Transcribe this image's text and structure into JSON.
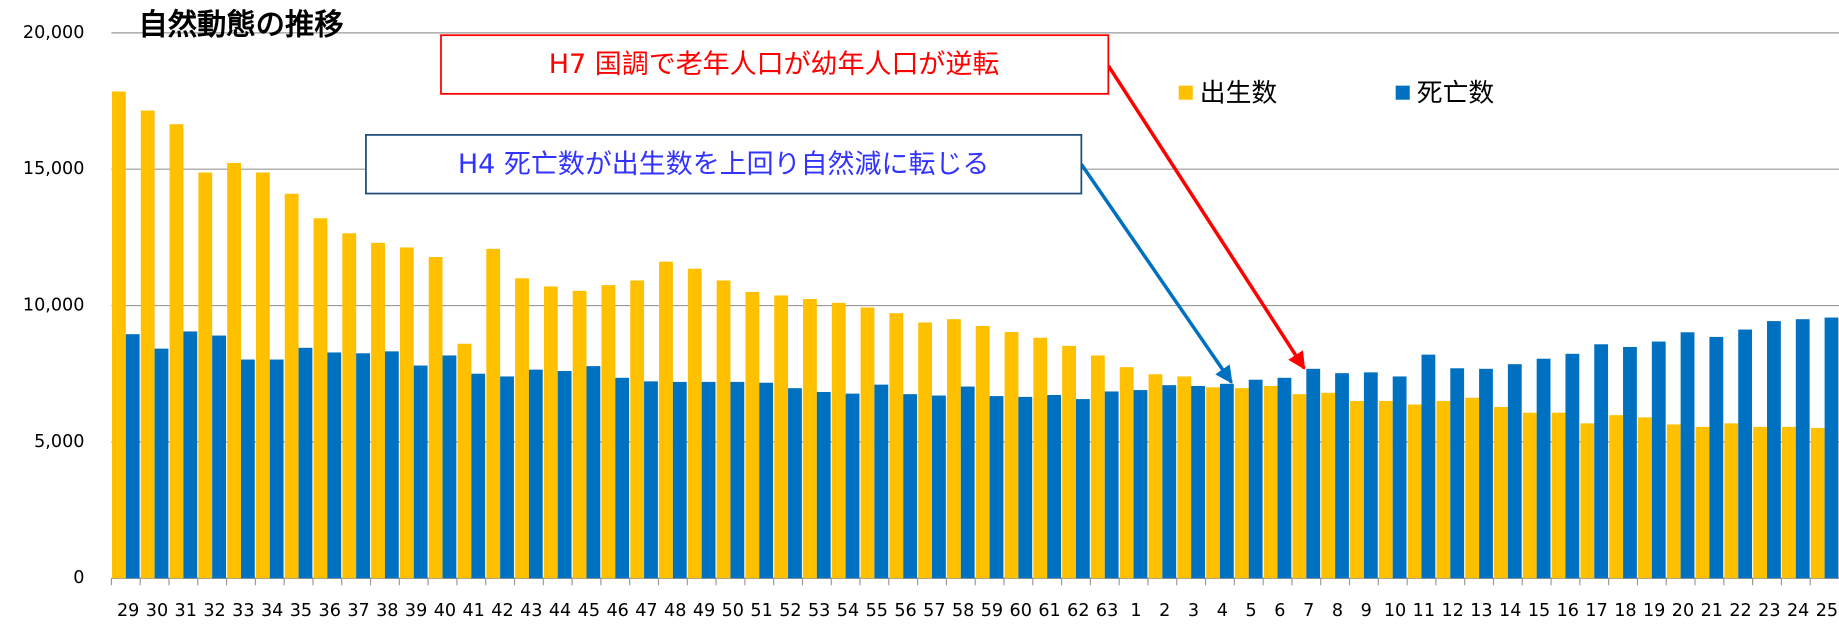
{
  "chart_data": {
    "type": "bar",
    "title": "自然動態の推移",
    "categories": [
      "29",
      "30",
      "31",
      "32",
      "33",
      "34",
      "35",
      "36",
      "37",
      "38",
      "39",
      "40",
      "41",
      "42",
      "43",
      "44",
      "45",
      "46",
      "47",
      "48",
      "49",
      "50",
      "51",
      "52",
      "53",
      "54",
      "55",
      "56",
      "57",
      "58",
      "59",
      "60",
      "61",
      "62",
      "63",
      "1",
      "2",
      "3",
      "4",
      "5",
      "6",
      "7",
      "8",
      "9",
      "10",
      "11",
      "12",
      "13",
      "14",
      "15",
      "16",
      "17",
      "18",
      "19",
      "20",
      "21",
      "22",
      "23",
      "24",
      "25"
    ],
    "series": [
      {
        "name": "出生数",
        "color": "#ffc000",
        "values": [
          17850,
          17150,
          16650,
          14880,
          15230,
          14880,
          14100,
          13200,
          12650,
          12300,
          12130,
          11780,
          8600,
          12080,
          11000,
          10700,
          10540,
          10750,
          10920,
          11610,
          11350,
          10920,
          10500,
          10370,
          10240,
          10100,
          9930,
          9720,
          9380,
          9500,
          9250,
          9030,
          8820,
          8520,
          8170,
          7740,
          7480,
          7400,
          7000,
          6970,
          7050,
          6750,
          6800,
          6500,
          6500,
          6370,
          6500,
          6620,
          6280,
          6070,
          6070,
          5680,
          5980,
          5900,
          5640,
          5550,
          5680,
          5550,
          5550,
          5510
        ]
      },
      {
        "name": "死亡数",
        "color": "#0070c0",
        "values": [
          8950,
          8420,
          9050,
          8900,
          8020,
          8020,
          8450,
          8280,
          8250,
          8320,
          7800,
          8170,
          7500,
          7400,
          7650,
          7600,
          7780,
          7350,
          7220,
          7200,
          7200,
          7200,
          7170,
          6970,
          6830,
          6770,
          7100,
          6750,
          6700,
          7030,
          6680,
          6650,
          6720,
          6570,
          6850,
          6900,
          7080,
          7050,
          7130,
          7280,
          7350,
          7680,
          7520,
          7550,
          7400,
          8200,
          7700,
          7680,
          7850,
          8050,
          8230,
          8580,
          8480,
          8680,
          9020,
          8850,
          9120,
          9430,
          9500,
          9560
        ]
      }
    ],
    "ylim": [
      0,
      20000
    ],
    "yticks": [
      0,
      {
        "value": 5000,
        "label": "5,000"
      },
      {
        "value": 10000,
        "label": "10,000"
      },
      {
        "value": 15000,
        "label": "15,000"
      },
      {
        "value": 20000,
        "label": "20,000"
      }
    ],
    "grid": true,
    "legend": "top-right",
    "annotations": [
      "H7 国調で老年人口が幼年人口が逆転",
      "H4 死亡数が出生数を上回り自然減に転じる"
    ]
  }
}
